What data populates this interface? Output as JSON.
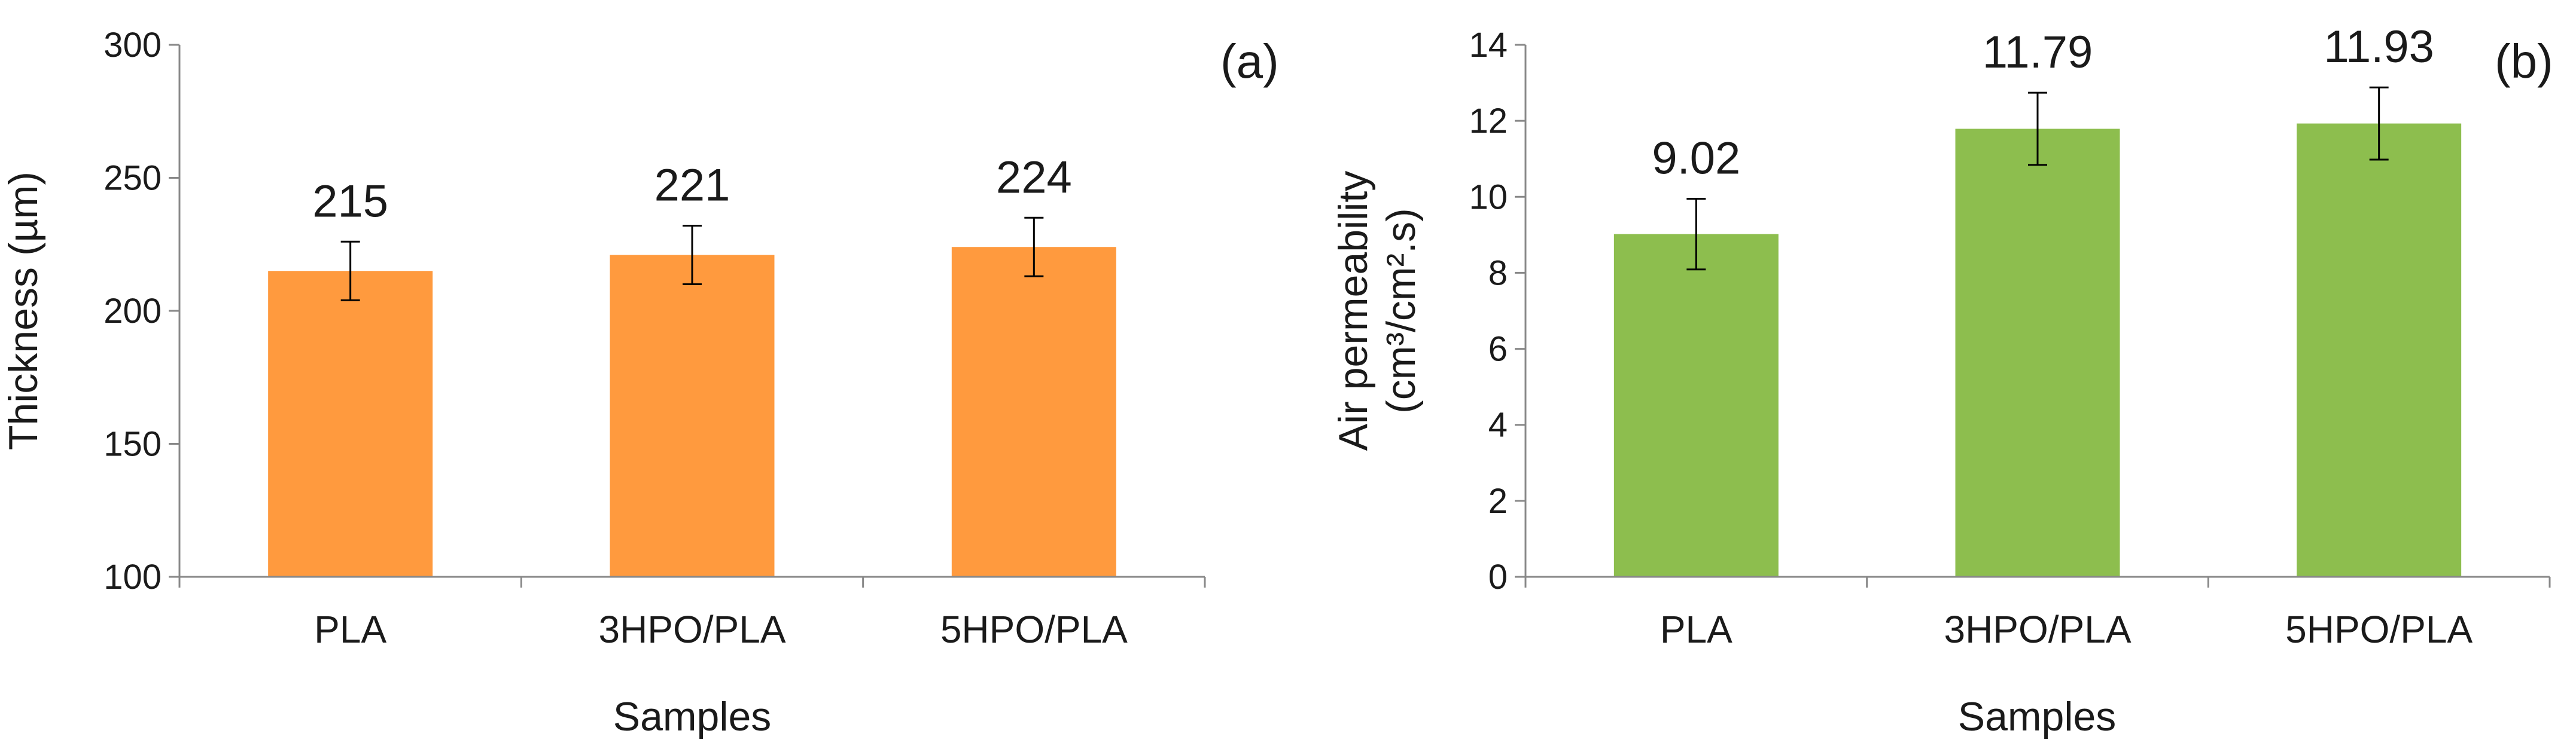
{
  "chart_data": [
    {
      "panel": "(a)",
      "type": "bar",
      "categories": [
        "PLA",
        "3HPO/PLA",
        "5HPO/PLA"
      ],
      "values": [
        215,
        221,
        224
      ],
      "errors": [
        11,
        11,
        11
      ],
      "data_labels": [
        "215",
        "221",
        "224"
      ],
      "xlabel": "Samples",
      "ylabel": "Thickness (µm)",
      "ylim": [
        100,
        300
      ],
      "yticks": [
        100,
        150,
        200,
        250,
        300
      ],
      "bar_color": "#FF9A3E",
      "grid": false
    },
    {
      "panel": "(b)",
      "type": "bar",
      "categories": [
        "PLA",
        "3HPO/PLA",
        "5HPO/PLA"
      ],
      "values": [
        9.02,
        11.79,
        11.93
      ],
      "errors": [
        0.93,
        0.95,
        0.95
      ],
      "data_labels": [
        "9.02",
        "11.79",
        "11.93"
      ],
      "xlabel": "Samples",
      "ylabel_line1": "Air permeability",
      "ylabel_line2": "(cm³/cm².s)",
      "ylim": [
        0,
        14
      ],
      "yticks": [
        0,
        2,
        4,
        6,
        8,
        10,
        12,
        14
      ],
      "bar_color": "#8DBE4E",
      "grid": false
    }
  ]
}
